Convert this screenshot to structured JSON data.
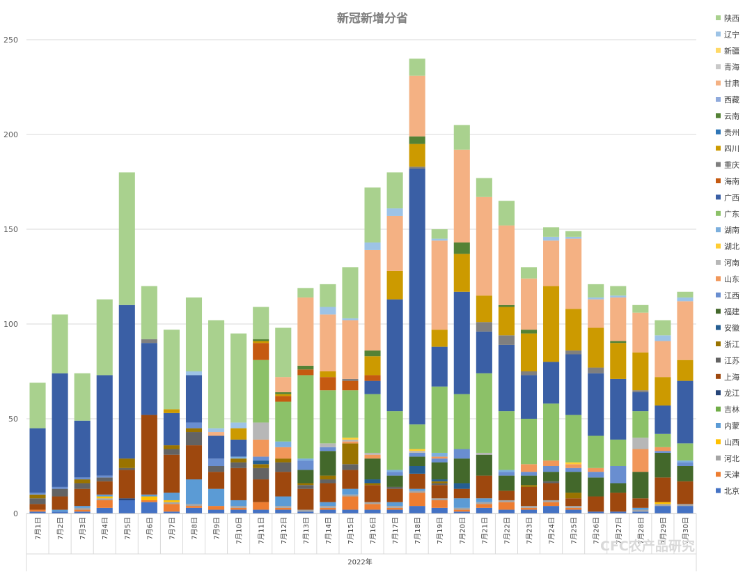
{
  "chart_data": {
    "type": "bar",
    "stacked": true,
    "title": "新冠新增分省",
    "xgroup_label": "2022年",
    "ylim": [
      0,
      250
    ],
    "yticks": [
      0,
      50,
      100,
      150,
      200,
      250
    ],
    "grid": true,
    "legend_position": "right",
    "categories": [
      "7月1日",
      "7月2日",
      "7月3日",
      "7月4日",
      "7月5日",
      "7月6日",
      "7月7日",
      "7月8日",
      "7月9日",
      "7月10日",
      "7月11日",
      "7月12日",
      "7月13日",
      "7月14日",
      "7月15日",
      "7月16日",
      "7月17日",
      "7月18日",
      "7月19日",
      "7月20日",
      "7月21日",
      "7月22日",
      "7月23日",
      "7月24日",
      "7月25日",
      "7月26日",
      "7月27日",
      "7月28日",
      "7月29日",
      "7月30日"
    ],
    "series": [
      {
        "name": "北京",
        "color": "#4472c4",
        "values": [
          1,
          1,
          1,
          3,
          7,
          6,
          1,
          3,
          2,
          2,
          2,
          2,
          1,
          2,
          2,
          2,
          2,
          4,
          3,
          1,
          3,
          2,
          2,
          4,
          2,
          1,
          1,
          1,
          4,
          4
        ]
      },
      {
        "name": "天津",
        "color": "#ed7d31",
        "values": [
          1,
          0,
          1,
          4,
          0,
          1,
          4,
          1,
          2,
          1,
          4,
          1,
          0,
          1,
          7,
          3,
          1,
          7,
          4,
          1,
          2,
          4,
          1,
          2,
          1,
          0,
          0,
          0,
          0,
          0
        ]
      },
      {
        "name": "河北",
        "color": "#a5a5a5",
        "values": [
          0,
          0,
          1,
          1,
          0,
          0,
          1,
          1,
          0,
          1,
          0,
          1,
          1,
          1,
          1,
          1,
          1,
          1,
          1,
          1,
          1,
          1,
          1,
          1,
          1,
          0,
          0,
          1,
          1,
          1
        ]
      },
      {
        "name": "山西",
        "color": "#ffc000",
        "values": [
          0,
          0,
          0,
          1,
          0,
          2,
          1,
          0,
          0,
          0,
          0,
          0,
          0,
          0,
          0,
          0,
          0,
          0,
          0,
          0,
          0,
          0,
          0,
          0,
          0,
          0,
          0,
          0,
          1,
          0
        ]
      },
      {
        "name": "内蒙",
        "color": "#5b9bd5",
        "values": [
          0,
          1,
          1,
          1,
          0,
          1,
          4,
          13,
          9,
          3,
          0,
          5,
          0,
          2,
          3,
          0,
          2,
          1,
          0,
          5,
          2,
          0,
          0,
          0,
          0,
          0,
          0,
          1,
          0,
          0
        ]
      },
      {
        "name": "吉林",
        "color": "#70ad47",
        "values": [
          0,
          0,
          0,
          0,
          0,
          0,
          0,
          0,
          0,
          0,
          0,
          0,
          0,
          0,
          0,
          0,
          0,
          0,
          0,
          0,
          0,
          0,
          0,
          0,
          0,
          0,
          0,
          0,
          0,
          0
        ]
      },
      {
        "name": "龙江",
        "color": "#264478",
        "values": [
          0,
          0,
          0,
          0,
          1,
          0,
          0,
          0,
          0,
          0,
          0,
          0,
          0,
          0,
          0,
          0,
          0,
          0,
          0,
          0,
          0,
          0,
          0,
          0,
          0,
          0,
          0,
          0,
          0,
          0
        ]
      },
      {
        "name": "上海",
        "color": "#9e480e",
        "values": [
          3,
          7,
          9,
          7,
          15,
          42,
          20,
          18,
          9,
          17,
          12,
          13,
          11,
          10,
          10,
          9,
          7,
          8,
          7,
          5,
          12,
          5,
          10,
          9,
          4,
          8,
          10,
          5,
          13,
          12
        ]
      },
      {
        "name": "江苏",
        "color": "#636363",
        "values": [
          3,
          4,
          3,
          2,
          1,
          0,
          3,
          7,
          3,
          3,
          6,
          5,
          2,
          2,
          3,
          0,
          1,
          0,
          1,
          0,
          0,
          0,
          0,
          1,
          0,
          0,
          0,
          0,
          0,
          0
        ]
      },
      {
        "name": "浙江",
        "color": "#997300",
        "values": [
          2,
          0,
          2,
          0,
          5,
          0,
          2,
          2,
          0,
          2,
          2,
          2,
          1,
          2,
          11,
          1,
          0,
          0,
          1,
          0,
          0,
          0,
          1,
          0,
          3,
          0,
          0,
          0,
          0,
          0
        ]
      },
      {
        "name": "安徽",
        "color": "#255e91",
        "values": [
          0,
          0,
          0,
          0,
          0,
          0,
          0,
          0,
          0,
          0,
          2,
          0,
          0,
          0,
          0,
          2,
          0,
          4,
          1,
          3,
          0,
          0,
          0,
          0,
          0,
          0,
          0,
          0,
          0,
          0
        ]
      },
      {
        "name": "福建",
        "color": "#43682b",
        "values": [
          0,
          0,
          0,
          0,
          0,
          0,
          0,
          0,
          0,
          0,
          0,
          0,
          7,
          13,
          0,
          11,
          6,
          5,
          9,
          13,
          11,
          8,
          5,
          5,
          11,
          10,
          5,
          14,
          13,
          8
        ]
      },
      {
        "name": "江西",
        "color": "#698ed0",
        "values": [
          1,
          1,
          1,
          1,
          0,
          0,
          0,
          3,
          4,
          0,
          2,
          0,
          5,
          2,
          0,
          0,
          2,
          2,
          2,
          5,
          0,
          2,
          2,
          3,
          2,
          3,
          9,
          0,
          1,
          2
        ]
      },
      {
        "name": "山东",
        "color": "#f1975a",
        "values": [
          0,
          0,
          0,
          0,
          0,
          0,
          0,
          0,
          0,
          0,
          9,
          6,
          0,
          0,
          1,
          2,
          0,
          0,
          1,
          0,
          0,
          0,
          4,
          3,
          2,
          2,
          0,
          12,
          2,
          0
        ]
      },
      {
        "name": "河南",
        "color": "#b7b7b7",
        "values": [
          0,
          0,
          0,
          0,
          0,
          0,
          0,
          0,
          0,
          0,
          9,
          0,
          0,
          2,
          1,
          1,
          0,
          1,
          0,
          0,
          1,
          0,
          0,
          0,
          0,
          0,
          0,
          6,
          0,
          0
        ]
      },
      {
        "name": "湖北",
        "color": "#ffcd33",
        "values": [
          0,
          0,
          0,
          0,
          0,
          0,
          0,
          0,
          0,
          0,
          0,
          0,
          0,
          0,
          1,
          0,
          0,
          1,
          0,
          0,
          0,
          0,
          0,
          0,
          1,
          0,
          0,
          0,
          0,
          0
        ]
      },
      {
        "name": "湖南",
        "color": "#7cafdd",
        "values": [
          0,
          0,
          0,
          0,
          0,
          0,
          0,
          0,
          0,
          1,
          0,
          3,
          1,
          0,
          0,
          0,
          1,
          0,
          2,
          0,
          0,
          1,
          0,
          0,
          0,
          0,
          0,
          0,
          0,
          1
        ]
      },
      {
        "name": "广东",
        "color": "#8cc168",
        "values": [
          0,
          0,
          0,
          0,
          0,
          0,
          0,
          0,
          0,
          0,
          33,
          21,
          44,
          28,
          25,
          31,
          31,
          13,
          35,
          29,
          42,
          31,
          24,
          30,
          25,
          17,
          14,
          14,
          7,
          9
        ]
      },
      {
        "name": "广西",
        "color": "#3a5fa5",
        "values": [
          34,
          60,
          30,
          53,
          81,
          38,
          17,
          25,
          12,
          9,
          0,
          0,
          0,
          0,
          0,
          7,
          59,
          135,
          21,
          54,
          22,
          35,
          23,
          22,
          32,
          33,
          32,
          10,
          15,
          33
        ]
      },
      {
        "name": "海南",
        "color": "#c55a11",
        "values": [
          0,
          0,
          0,
          0,
          0,
          0,
          0,
          0,
          0,
          0,
          9,
          3,
          3,
          7,
          5,
          3,
          0,
          0,
          0,
          0,
          0,
          0,
          0,
          0,
          0,
          0,
          0,
          0,
          0,
          0
        ]
      },
      {
        "name": "重庆",
        "color": "#7f7f7f",
        "values": [
          0,
          0,
          0,
          0,
          0,
          2,
          0,
          0,
          0,
          0,
          0,
          0,
          0,
          0,
          1,
          0,
          0,
          1,
          0,
          0,
          5,
          5,
          2,
          0,
          2,
          3,
          0,
          1,
          0,
          0
        ]
      },
      {
        "name": "四川",
        "color": "#cc9a00",
        "values": [
          0,
          0,
          0,
          0,
          0,
          0,
          2,
          0,
          0,
          6,
          1,
          1,
          0,
          3,
          0,
          10,
          15,
          12,
          9,
          20,
          14,
          15,
          20,
          40,
          22,
          21,
          19,
          20,
          15,
          11
        ]
      },
      {
        "name": "贵州",
        "color": "#2e75b6",
        "values": [
          0,
          0,
          0,
          0,
          0,
          0,
          0,
          0,
          0,
          0,
          0,
          0,
          0,
          0,
          0,
          0,
          0,
          0,
          0,
          0,
          0,
          0,
          0,
          0,
          0,
          0,
          0,
          0,
          0,
          0
        ]
      },
      {
        "name": "云南",
        "color": "#548235",
        "values": [
          0,
          0,
          0,
          0,
          0,
          0,
          0,
          0,
          0,
          0,
          1,
          1,
          2,
          0,
          0,
          3,
          0,
          4,
          0,
          6,
          0,
          1,
          2,
          0,
          0,
          0,
          1,
          0,
          0,
          0
        ]
      },
      {
        "name": "西藏",
        "color": "#8faadc",
        "values": [
          0,
          0,
          0,
          0,
          0,
          0,
          0,
          0,
          0,
          0,
          0,
          0,
          0,
          0,
          0,
          0,
          0,
          0,
          0,
          0,
          0,
          0,
          0,
          0,
          0,
          0,
          0,
          0,
          0,
          0
        ]
      },
      {
        "name": "甘肃",
        "color": "#f4b183",
        "values": [
          0,
          0,
          0,
          0,
          0,
          0,
          0,
          0,
          2,
          0,
          0,
          8,
          36,
          30,
          31,
          53,
          29,
          32,
          47,
          49,
          52,
          42,
          27,
          24,
          37,
          15,
          23,
          21,
          19,
          31
        ]
      },
      {
        "name": "青海",
        "color": "#c9c9c9",
        "values": [
          0,
          0,
          0,
          0,
          0,
          0,
          0,
          0,
          0,
          0,
          0,
          0,
          0,
          0,
          0,
          0,
          0,
          0,
          0,
          0,
          0,
          0,
          0,
          0,
          0,
          0,
          0,
          0,
          0,
          0
        ]
      },
      {
        "name": "新疆",
        "color": "#ffd966",
        "values": [
          0,
          0,
          0,
          0,
          0,
          0,
          0,
          0,
          0,
          0,
          0,
          0,
          0,
          0,
          0,
          0,
          0,
          0,
          0,
          0,
          0,
          0,
          0,
          0,
          0,
          0,
          0,
          0,
          0,
          0
        ]
      },
      {
        "name": "辽宁",
        "color": "#9dc3e6",
        "values": [
          0,
          0,
          0,
          0,
          0,
          0,
          0,
          2,
          2,
          3,
          0,
          0,
          0,
          4,
          1,
          4,
          4,
          0,
          1,
          0,
          0,
          0,
          0,
          2,
          1,
          1,
          1,
          0,
          3,
          2
        ]
      },
      {
        "name": "陕西",
        "color": "#a9d18e",
        "values": [
          24,
          31,
          25,
          40,
          70,
          28,
          42,
          39,
          57,
          47,
          17,
          26,
          5,
          12,
          27,
          29,
          19,
          9,
          5,
          13,
          10,
          13,
          6,
          5,
          3,
          7,
          5,
          4,
          8,
          3
        ]
      }
    ]
  },
  "watermark": "CFC农产品研究"
}
